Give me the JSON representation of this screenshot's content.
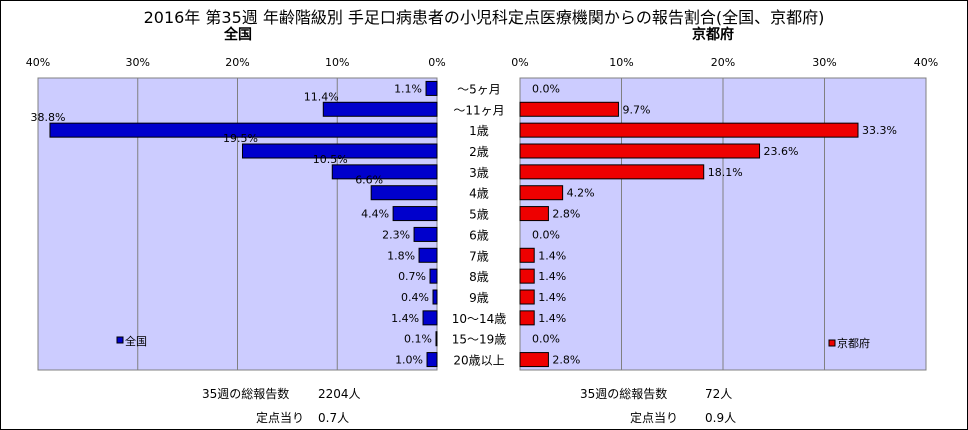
{
  "title": "2016年 第35週 年齢階級別 手足口病患者の小児科定点医療機関からの報告割合(全国、京都府)",
  "chart_data": [
    {
      "type": "bar",
      "orientation": "horizontal",
      "direction": "right-to-left",
      "subtitle": "全国",
      "categories": [
        "～5ヶ月",
        "～11ヶ月",
        "1歳",
        "2歳",
        "3歳",
        "4歳",
        "5歳",
        "6歳",
        "7歳",
        "8歳",
        "9歳",
        "10～14歳",
        "15～19歳",
        "20歳以上"
      ],
      "values": [
        1.1,
        11.4,
        38.8,
        19.5,
        10.5,
        6.6,
        4.4,
        2.3,
        1.8,
        0.7,
        0.4,
        1.4,
        0.1,
        1.0
      ],
      "value_labels": [
        "1.1%",
        "11.4%",
        "38.8%",
        "19.5%",
        "10.5%",
        "6.6%",
        "4.4%",
        "2.3%",
        "1.8%",
        "0.7%",
        "0.4%",
        "1.4%",
        "0.1%",
        "1.0%"
      ],
      "xlim": [
        0,
        40
      ],
      "ticks": [
        "0%",
        "10%",
        "20%",
        "30%",
        "40%"
      ],
      "series_name": "全国",
      "color": "#0000cc",
      "legend": "bottom-left",
      "plot_background": "#ccccff"
    },
    {
      "type": "bar",
      "orientation": "horizontal",
      "direction": "left-to-right",
      "subtitle": "京都府",
      "categories": [
        "～5ヶ月",
        "～11ヶ月",
        "1歳",
        "2歳",
        "3歳",
        "4歳",
        "5歳",
        "6歳",
        "7歳",
        "8歳",
        "9歳",
        "10～14歳",
        "15～19歳",
        "20歳以上"
      ],
      "values": [
        0.0,
        9.7,
        33.3,
        23.6,
        18.1,
        4.2,
        2.8,
        0.0,
        1.4,
        1.4,
        1.4,
        1.4,
        0.0,
        2.8
      ],
      "value_labels": [
        "0.0%",
        "9.7%",
        "33.3%",
        "23.6%",
        "18.1%",
        "4.2%",
        "2.8%",
        "0.0%",
        "1.4%",
        "1.4%",
        "1.4%",
        "1.4%",
        "0.0%",
        "2.8%"
      ],
      "xlim": [
        0,
        40
      ],
      "ticks": [
        "0%",
        "10%",
        "20%",
        "30%",
        "40%"
      ],
      "series_name": "京都府",
      "color": "#ee0000",
      "legend": "bottom-right",
      "plot_background": "#ccccff"
    }
  ],
  "footer": {
    "national_total_label": "35週の総報告数",
    "national_total_value": "2204人",
    "national_per_label": "定点当り",
    "national_per_value": "0.7人",
    "kyoto_total_label": "35週の総報告数",
    "kyoto_total_value": "72人",
    "kyoto_per_label": "定点当り",
    "kyoto_per_value": "0.9人"
  }
}
